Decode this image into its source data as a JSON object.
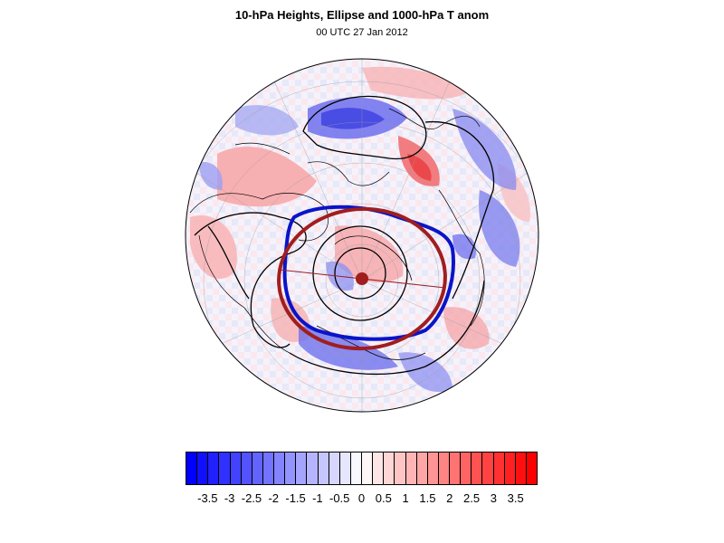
{
  "header": {
    "title": "10-hPa Heights, Ellipse and 1000-hPa T anom",
    "subtitle": "00 UTC 27 Jan 2012"
  },
  "colors": {
    "cold": "#0000ff",
    "warm": "#ff0000",
    "neutral": "#ffffff",
    "height_contour": "#000000",
    "blue_vortex_contour": "#0a14c8",
    "ellipse": "#a01e1e",
    "coastline": "#000000"
  },
  "map": {
    "projection": "polar stereographic (Northern Hemisphere)",
    "fields": [
      "10-hPa geopotential height contours",
      "fitted vortex ellipse",
      "1000-hPa temperature anomaly shading"
    ]
  },
  "colorbar": {
    "levels": [
      -3.75,
      -3.5,
      -3.25,
      -3,
      -2.75,
      -2.5,
      -2.25,
      -2,
      -1.75,
      -1.5,
      -1.25,
      -1,
      -0.75,
      -0.5,
      -0.25,
      0,
      0.25,
      0.5,
      0.75,
      1,
      1.25,
      1.5,
      1.75,
      2,
      2.25,
      2.5,
      2.75,
      3,
      3.25,
      3.5,
      3.75
    ],
    "tick_labels": [
      "-3.5",
      "-3",
      "-2.5",
      "-2",
      "-1.5",
      "-1",
      "-0.5",
      "0",
      "0.5",
      "1",
      "1.5",
      "2",
      "2.5",
      "3",
      "3.5"
    ],
    "tick_values": [
      -3.5,
      -3,
      -2.5,
      -2,
      -1.5,
      -1,
      -0.5,
      0,
      0.5,
      1,
      1.5,
      2,
      2.5,
      3,
      3.5
    ]
  }
}
